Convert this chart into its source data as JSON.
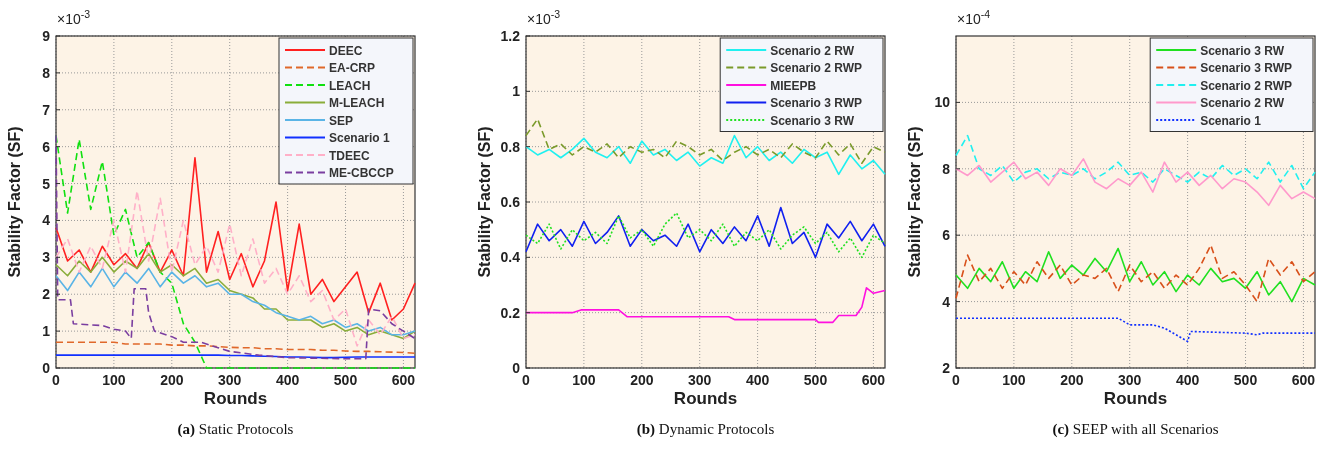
{
  "chart_data": [
    {
      "type": "line",
      "xlabel": "Rounds",
      "ylabel": "Stability Factor (SF)",
      "annotations": [
        "×10$^{-3}$",
        "(a) Static Protocols"
      ],
      "xlim": [
        0,
        620
      ],
      "xticks": [
        0,
        100,
        200,
        300,
        400,
        500,
        600
      ],
      "ylim": [
        0,
        9
      ],
      "yticks": [
        0,
        1,
        2,
        3,
        4,
        5,
        6,
        7,
        8,
        9
      ],
      "grid": true,
      "legend": "top right",
      "x": [
        0,
        20,
        40,
        60,
        80,
        100,
        120,
        140,
        160,
        180,
        200,
        220,
        240,
        260,
        280,
        300,
        320,
        340,
        360,
        380,
        400,
        420,
        440,
        460,
        480,
        500,
        520,
        540,
        560,
        580,
        600,
        620
      ],
      "series": [
        {
          "name": "DEEC",
          "color": "#ff2020",
          "line_style": "solid",
          "values": [
            3.8,
            2.9,
            3.2,
            2.6,
            3.3,
            2.8,
            3.1,
            2.7,
            3.4,
            2.6,
            3.2,
            2.5,
            5.7,
            2.6,
            3.7,
            2.4,
            3.1,
            2.2,
            2.9,
            4.5,
            2.1,
            3.9,
            2.0,
            2.4,
            1.8,
            2.2,
            2.6,
            1.5,
            2.3,
            1.3,
            1.6,
            2.3
          ]
        },
        {
          "name": "EA-CRP",
          "color": "#e0682a",
          "line_style": "dashed",
          "values": [
            0.7,
            0.7,
            0.7,
            0.7,
            0.7,
            0.7,
            0.65,
            0.65,
            0.65,
            0.65,
            0.62,
            0.62,
            0.6,
            0.6,
            0.58,
            0.56,
            0.55,
            0.55,
            0.52,
            0.52,
            0.5,
            0.5,
            0.5,
            0.48,
            0.48,
            0.46,
            0.45,
            0.45,
            0.44,
            0.43,
            0.42,
            0.4
          ]
        },
        {
          "name": "LEACH",
          "color": "#10e010",
          "line_style": "dashed",
          "values": [
            6.3,
            4.2,
            6.2,
            4.3,
            5.6,
            3.6,
            4.3,
            3.0,
            3.4,
            2.6,
            2.3,
            1.2,
            0.7,
            0,
            0,
            0,
            0,
            0,
            0,
            0,
            0,
            0,
            0,
            0,
            0,
            0,
            0,
            0,
            0,
            0,
            0,
            0
          ]
        },
        {
          "name": "M-LEACH",
          "color": "#8aad3a",
          "line_style": "solid",
          "values": [
            2.8,
            2.5,
            2.9,
            2.6,
            3.0,
            2.6,
            2.9,
            2.7,
            3.1,
            2.6,
            2.8,
            2.5,
            2.7,
            2.3,
            2.4,
            2.1,
            2.0,
            1.9,
            1.6,
            1.6,
            1.3,
            1.3,
            1.3,
            1.1,
            1.2,
            1.0,
            1.1,
            0.9,
            1.0,
            0.9,
            0.8,
            1.0
          ]
        },
        {
          "name": "SEP",
          "color": "#5ab4e6",
          "line_style": "solid",
          "values": [
            2.5,
            2.1,
            2.6,
            2.2,
            2.7,
            2.2,
            2.6,
            2.3,
            2.7,
            2.2,
            2.6,
            2.3,
            2.5,
            2.2,
            2.3,
            2.0,
            2.0,
            1.8,
            1.7,
            1.5,
            1.4,
            1.3,
            1.4,
            1.2,
            1.3,
            1.1,
            1.2,
            1.0,
            1.1,
            0.9,
            0.9,
            1.0
          ]
        },
        {
          "name": "Scenario 1",
          "color": "#1030ff",
          "line_style": "solid",
          "values": [
            0.35,
            0.35,
            0.35,
            0.35,
            0.35,
            0.35,
            0.35,
            0.35,
            0.35,
            0.35,
            0.35,
            0.35,
            0.35,
            0.35,
            0.35,
            0.34,
            0.34,
            0.33,
            0.32,
            0.31,
            0.3,
            0.3,
            0.29,
            0.28,
            0.28,
            0.29,
            0.3,
            0.3,
            0.3,
            0.3,
            0.3,
            0.3
          ]
        },
        {
          "name": "TDEEC",
          "color": "#ffb0c8",
          "line_style": "dashed",
          "values": [
            3.0,
            3.5,
            2.6,
            3.3,
            2.7,
            4.0,
            2.6,
            4.8,
            2.9,
            4.6,
            2.6,
            4.0,
            2.8,
            3.3,
            2.6,
            3.9,
            2.5,
            3.5,
            2.3,
            2.7,
            2.0,
            2.5,
            1.8,
            2.1,
            1.3,
            1.6,
            0.6,
            1.3,
            0.9,
            1.4,
            0.8,
            0.9
          ]
        },
        {
          "name": "ME-CBCCP",
          "color": "#7a3ea0",
          "line_style": "dashed",
          "x": [
            0,
            3,
            6,
            25,
            30,
            80,
            100,
            120,
            130,
            135,
            155,
            160,
            170,
            200,
            220,
            250,
            280,
            300,
            350,
            400,
            500,
            535,
            540,
            560,
            580,
            620
          ],
          "values": [
            6.3,
            1.85,
            1.85,
            1.85,
            1.2,
            1.15,
            1.05,
            1.0,
            0.8,
            2.15,
            2.15,
            1.5,
            1.0,
            0.85,
            0.7,
            0.7,
            0.55,
            0.45,
            0.35,
            0.28,
            0.25,
            0.25,
            1.6,
            1.55,
            1.2,
            0.8
          ]
        }
      ]
    },
    {
      "type": "line",
      "xlabel": "Rounds",
      "ylabel": "Stability Factor (SF)",
      "annotations": [
        "×10$^{-3}$",
        "(b) Dynamic Protocols"
      ],
      "xlim": [
        0,
        620
      ],
      "xticks": [
        0,
        100,
        200,
        300,
        400,
        500,
        600
      ],
      "ylim": [
        0,
        1.2
      ],
      "yticks": [
        0,
        0.2,
        0.4,
        0.6,
        0.8,
        1,
        1.2
      ],
      "grid": true,
      "legend": "top right",
      "x": [
        0,
        20,
        40,
        60,
        80,
        100,
        120,
        140,
        160,
        180,
        200,
        220,
        240,
        260,
        280,
        300,
        320,
        340,
        360,
        380,
        400,
        420,
        440,
        460,
        480,
        500,
        520,
        540,
        560,
        580,
        600,
        620
      ],
      "series": [
        {
          "name": "Scenario 2 RW",
          "color": "#20f0f0",
          "line_style": "solid",
          "values": [
            0.8,
            0.77,
            0.79,
            0.76,
            0.79,
            0.83,
            0.78,
            0.76,
            0.8,
            0.74,
            0.82,
            0.77,
            0.79,
            0.75,
            0.78,
            0.73,
            0.76,
            0.74,
            0.84,
            0.76,
            0.8,
            0.75,
            0.78,
            0.74,
            0.79,
            0.76,
            0.78,
            0.7,
            0.77,
            0.72,
            0.75,
            0.7
          ]
        },
        {
          "name": "Scenario 2 RWP",
          "color": "#7a9a2a",
          "line_style": "dashed",
          "values": [
            0.84,
            0.9,
            0.79,
            0.81,
            0.77,
            0.8,
            0.78,
            0.81,
            0.76,
            0.8,
            0.78,
            0.79,
            0.76,
            0.82,
            0.8,
            0.77,
            0.79,
            0.75,
            0.78,
            0.8,
            0.77,
            0.79,
            0.76,
            0.81,
            0.78,
            0.76,
            0.82,
            0.77,
            0.81,
            0.74,
            0.8,
            0.78
          ]
        },
        {
          "name": "MIEEPB",
          "color": "#ff10e0",
          "line_style": "solid",
          "x": [
            0,
            80,
            95,
            160,
            175,
            350,
            360,
            500,
            505,
            530,
            540,
            570,
            580,
            588,
            600,
            620
          ],
          "values": [
            0.2,
            0.2,
            0.21,
            0.21,
            0.185,
            0.185,
            0.175,
            0.175,
            0.165,
            0.165,
            0.19,
            0.19,
            0.22,
            0.29,
            0.27,
            0.28
          ]
        },
        {
          "name": "Scenario 3 RWP",
          "color": "#1020f0",
          "line_style": "solid",
          "values": [
            0.42,
            0.52,
            0.46,
            0.5,
            0.44,
            0.53,
            0.45,
            0.49,
            0.55,
            0.44,
            0.5,
            0.46,
            0.48,
            0.44,
            0.52,
            0.42,
            0.5,
            0.45,
            0.51,
            0.46,
            0.55,
            0.44,
            0.58,
            0.45,
            0.49,
            0.4,
            0.52,
            0.47,
            0.53,
            0.46,
            0.52,
            0.44
          ]
        },
        {
          "name": "Scenario 3 RW",
          "color": "#20e020",
          "line_style": "dotted",
          "values": [
            0.48,
            0.45,
            0.52,
            0.43,
            0.5,
            0.46,
            0.49,
            0.45,
            0.55,
            0.47,
            0.5,
            0.44,
            0.52,
            0.56,
            0.47,
            0.5,
            0.46,
            0.52,
            0.44,
            0.49,
            0.46,
            0.5,
            0.43,
            0.48,
            0.51,
            0.45,
            0.49,
            0.42,
            0.47,
            0.4,
            0.48,
            0.45
          ]
        }
      ]
    },
    {
      "type": "line",
      "xlabel": "Rounds",
      "ylabel": "Stability Factor (SF)",
      "annotations": [
        "×10$^{-4}$",
        "(c) SEEP with all Scenarios"
      ],
      "xlim": [
        0,
        620
      ],
      "xticks": [
        0,
        100,
        200,
        300,
        400,
        500,
        600
      ],
      "ylim": [
        2,
        12
      ],
      "yticks": [
        2,
        4,
        6,
        8,
        10
      ],
      "grid": true,
      "legend": "top right",
      "x": [
        0,
        20,
        40,
        60,
        80,
        100,
        120,
        140,
        160,
        180,
        200,
        220,
        240,
        260,
        280,
        300,
        320,
        340,
        360,
        380,
        400,
        420,
        440,
        460,
        480,
        500,
        520,
        540,
        560,
        580,
        600,
        620
      ],
      "series": [
        {
          "name": "Scenario 3 RW",
          "color": "#20e020",
          "line_style": "solid",
          "values": [
            4.8,
            4.4,
            5.0,
            4.6,
            5.2,
            4.4,
            4.9,
            4.6,
            5.5,
            4.7,
            5.1,
            4.8,
            5.3,
            4.9,
            5.6,
            4.6,
            5.2,
            4.5,
            4.9,
            4.3,
            4.8,
            4.5,
            5.0,
            4.6,
            4.7,
            4.4,
            4.9,
            4.2,
            4.6,
            4.0,
            4.7,
            4.5
          ]
        },
        {
          "name": "Scenario 3 RWP",
          "color": "#d8501a",
          "line_style": "dashed",
          "values": [
            4.1,
            5.4,
            4.6,
            5.0,
            4.4,
            4.9,
            4.5,
            5.2,
            4.7,
            5.1,
            4.5,
            4.8,
            4.7,
            5.0,
            4.3,
            5.1,
            4.6,
            4.9,
            4.4,
            4.8,
            4.5,
            5.0,
            5.7,
            4.7,
            4.9,
            4.5,
            4.0,
            5.3,
            4.8,
            5.2,
            4.6,
            4.9
          ]
        },
        {
          "name": "Scenario 2 RWP",
          "color": "#20f0f0",
          "line_style": "dashed",
          "values": [
            8.4,
            9.0,
            8.0,
            7.8,
            8.1,
            7.6,
            7.9,
            8.0,
            7.7,
            7.9,
            7.8,
            8.0,
            7.7,
            7.9,
            8.2,
            7.8,
            7.9,
            7.6,
            8.0,
            7.8,
            7.6,
            7.9,
            7.7,
            8.1,
            7.8,
            8.0,
            7.7,
            8.2,
            7.6,
            8.1,
            7.4,
            7.9
          ]
        },
        {
          "name": "Scenario 2 RW",
          "color": "#ff99cc",
          "line_style": "solid",
          "values": [
            8.0,
            7.8,
            8.1,
            7.6,
            7.9,
            8.2,
            7.7,
            7.9,
            7.5,
            8.0,
            7.8,
            8.3,
            7.6,
            7.4,
            7.7,
            7.5,
            7.9,
            7.3,
            8.2,
            7.6,
            7.9,
            7.5,
            7.8,
            7.4,
            7.7,
            7.6,
            7.3,
            6.9,
            7.5,
            7.1,
            7.3,
            7.1
          ]
        },
        {
          "name": "Scenario 1",
          "color": "#1030ff",
          "line_style": "dotted",
          "x": [
            0,
            280,
            300,
            340,
            360,
            380,
            400,
            405,
            500,
            520,
            530,
            620
          ],
          "values": [
            3.5,
            3.5,
            3.3,
            3.3,
            3.2,
            3.0,
            2.8,
            3.1,
            3.05,
            3.0,
            3.05,
            3.05
          ]
        }
      ]
    }
  ]
}
